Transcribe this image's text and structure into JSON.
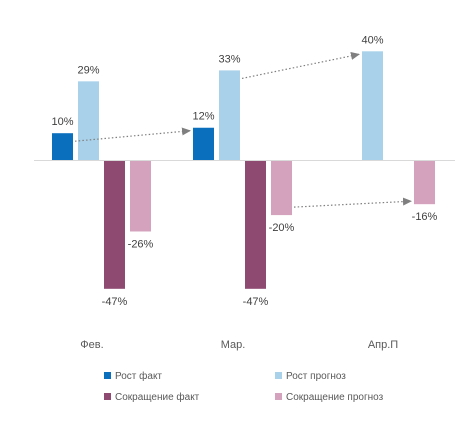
{
  "chart_data": {
    "type": "bar",
    "categories": [
      "Фев.",
      "Мар.",
      "Апр.П"
    ],
    "series": [
      {
        "name": "Рост факт",
        "color": "#0a6fbd",
        "values": [
          10,
          12,
          null
        ],
        "labels": [
          "10%",
          "12%",
          ""
        ]
      },
      {
        "name": "Рост прогноз",
        "color": "#a9d2ea",
        "values": [
          29,
          33,
          40
        ],
        "labels": [
          "29%",
          "33%",
          "40%"
        ]
      },
      {
        "name": "Сокращение факт",
        "color": "#8f4a72",
        "values": [
          -47,
          -47,
          null
        ],
        "labels": [
          "-47%",
          "-47%",
          ""
        ]
      },
      {
        "name": "Сокращение прогноз",
        "color": "#d4a2bc",
        "values": [
          -26,
          -20,
          -16
        ],
        "labels": [
          "-26%",
          "-20%",
          "-16%"
        ]
      }
    ],
    "arrows": [
      {
        "from": {
          "series": 0,
          "category": 0
        },
        "to": {
          "series": 0,
          "category": 1
        }
      },
      {
        "from": {
          "series": 1,
          "category": 1
        },
        "to": {
          "series": 1,
          "category": 2
        }
      },
      {
        "from": {
          "series": 3,
          "category": 1
        },
        "to": {
          "series": 3,
          "category": 2
        }
      }
    ],
    "legend_position": "bottom",
    "ylim": [
      -50,
      42
    ],
    "grid": false
  }
}
